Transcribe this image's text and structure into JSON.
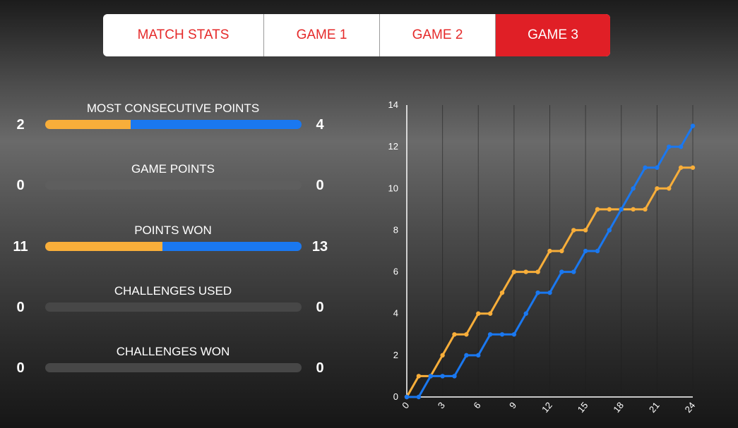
{
  "tabs": [
    {
      "label": "MATCH STATS",
      "active": false
    },
    {
      "label": "GAME 1",
      "active": false
    },
    {
      "label": "GAME 2",
      "active": false
    },
    {
      "label": "GAME 3",
      "active": true
    }
  ],
  "stats": [
    {
      "label": "MOST CONSECUTIVE POINTS",
      "left": "2",
      "right": "4",
      "left_value": 2,
      "right_value": 4
    },
    {
      "label": "GAME POINTS",
      "left": "0",
      "right": "0",
      "left_value": 0,
      "right_value": 0
    },
    {
      "label": "POINTS WON",
      "left": "11",
      "right": "13",
      "left_value": 11,
      "right_value": 13
    },
    {
      "label": "CHALLENGES USED",
      "left": "0",
      "right": "0",
      "left_value": 0,
      "right_value": 0
    },
    {
      "label": "CHALLENGES WON",
      "left": "0",
      "right": "0",
      "left_value": 0,
      "right_value": 0
    }
  ],
  "colors": {
    "left_player": "#f8ae3a",
    "right_player": "#1a78f0",
    "accent": "#e01f26",
    "empty_bar": "#5e5e5e"
  },
  "chart_data": {
    "type": "line",
    "x": [
      0,
      1,
      2,
      3,
      4,
      5,
      6,
      7,
      8,
      9,
      10,
      11,
      12,
      13,
      14,
      15,
      16,
      17,
      18,
      19,
      20,
      21,
      22,
      23,
      24
    ],
    "series": [
      {
        "color": "#f8ae3a",
        "values": [
          0,
          1,
          1,
          2,
          3,
          3,
          4,
          4,
          5,
          6,
          6,
          6,
          7,
          7,
          8,
          8,
          9,
          9,
          9,
          9,
          9,
          10,
          10,
          11,
          11
        ]
      },
      {
        "color": "#1a78f0",
        "values": [
          0,
          0,
          1,
          1,
          1,
          2,
          2,
          3,
          3,
          3,
          4,
          5,
          5,
          6,
          6,
          7,
          7,
          8,
          9,
          10,
          11,
          11,
          12,
          12,
          13
        ]
      }
    ],
    "xlim": [
      0,
      24
    ],
    "ylim": [
      0,
      14
    ],
    "x_ticks": [
      "0",
      "3",
      "6",
      "9",
      "12",
      "15",
      "18",
      "21",
      "24"
    ],
    "y_ticks": [
      "0",
      "2",
      "4",
      "6",
      "8",
      "10",
      "12",
      "14"
    ],
    "grid": "vertical"
  }
}
